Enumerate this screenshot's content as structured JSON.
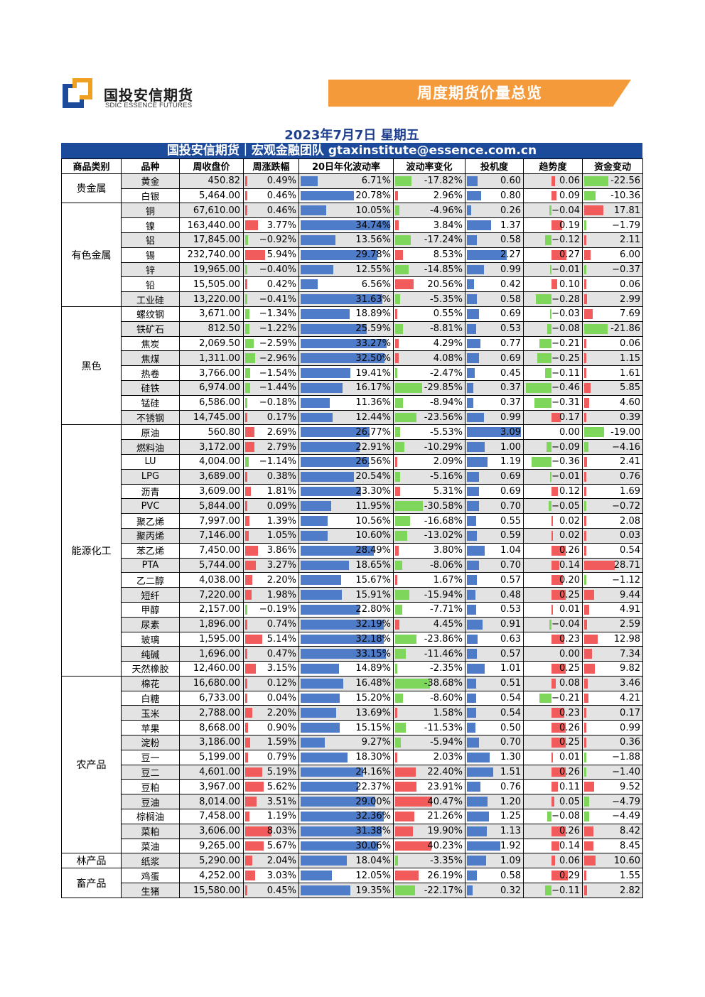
{
  "logo": {
    "cn": "国投安信期货",
    "en": "SDIC ESSENCE FUTURES"
  },
  "banner": {
    "title": "周度期货价量总览"
  },
  "date_line": "2023年7月7日 星期五",
  "team_line": "国投安信期货｜宏观金融团队 gtaxinstitute@essence.com.cn",
  "colors": {
    "positive": "#f25b5b",
    "negative": "#7ed65a",
    "volatility": "#4f7cc8",
    "header_bar": "#1d4b9c",
    "banner": "#f59a3a"
  },
  "columns": [
    "商品类别",
    "品种",
    "周收盘价",
    "周涨跌幅",
    "20日年化波动率",
    "波动率变化",
    "投机度",
    "趋势度",
    "资金变动"
  ],
  "groups": [
    {
      "category": "贵金属",
      "rows": [
        [
          "黄金",
          "450.82",
          "0.49%",
          "6.71%",
          "-17.82%",
          "0.60",
          "0.06",
          "-22.56"
        ],
        [
          "白银",
          "5,464.00",
          "0.46%",
          "20.78%",
          "2.96%",
          "0.80",
          "0.09",
          "-10.36"
        ]
      ]
    },
    {
      "category": "有色金属",
      "rows": [
        [
          "铜",
          "67,610.00",
          "0.46%",
          "10.05%",
          "-4.96%",
          "0.26",
          "−0.04",
          "17.81"
        ],
        [
          "镍",
          "163,440.00",
          "3.77%",
          "34.74%",
          "3.84%",
          "1.37",
          "0.19",
          "−1.79"
        ],
        [
          "铝",
          "17,845.00",
          "−0.92%",
          "13.56%",
          "-17.24%",
          "0.58",
          "−0.12",
          "2.11"
        ],
        [
          "锡",
          "232,740.00",
          "5.94%",
          "29.78%",
          "8.53%",
          "2.27",
          "0.27",
          "6.00"
        ],
        [
          "锌",
          "19,965.00",
          "−0.40%",
          "12.55%",
          "-14.85%",
          "0.99",
          "−0.01",
          "−0.37"
        ],
        [
          "铅",
          "15,505.00",
          "0.42%",
          "6.56%",
          "20.56%",
          "0.42",
          "0.10",
          "0.06"
        ],
        [
          "工业硅",
          "13,220.00",
          "−0.41%",
          "31.63%",
          "-5.35%",
          "0.58",
          "−0.28",
          "2.99"
        ]
      ]
    },
    {
      "category": "黑色",
      "rows": [
        [
          "螺纹钢",
          "3,671.00",
          "−1.34%",
          "18.89%",
          "0.55%",
          "0.69",
          "−0.03",
          "7.69"
        ],
        [
          "铁矿石",
          "812.50",
          "−1.22%",
          "25.59%",
          "-8.81%",
          "0.53",
          "−0.08",
          "-21.86"
        ],
        [
          "焦炭",
          "2,069.50",
          "−2.59%",
          "33.27%",
          "4.29%",
          "0.77",
          "−0.21",
          "0.06"
        ],
        [
          "焦煤",
          "1,311.00",
          "−2.96%",
          "32.50%",
          "4.08%",
          "0.69",
          "−0.25",
          "1.15"
        ],
        [
          "热卷",
          "3,766.00",
          "−1.54%",
          "19.41%",
          "-2.47%",
          "0.45",
          "−0.11",
          "1.61"
        ],
        [
          "硅铁",
          "6,974.00",
          "−1.44%",
          "16.17%",
          "-29.85%",
          "0.37",
          "−0.46",
          "5.85"
        ],
        [
          "锰硅",
          "6,586.00",
          "−0.18%",
          "11.36%",
          "-8.94%",
          "0.37",
          "−0.31",
          "4.60"
        ],
        [
          "不锈钢",
          "14,745.00",
          "0.17%",
          "12.44%",
          "-23.56%",
          "0.99",
          "0.17",
          "0.39"
        ]
      ]
    },
    {
      "category": "能源化工",
      "rows": [
        [
          "原油",
          "560.80",
          "2.69%",
          "26.77%",
          "-5.53%",
          "3.09",
          "0.00",
          "-19.00"
        ],
        [
          "燃料油",
          "3,172.00",
          "2.79%",
          "22.91%",
          "-10.29%",
          "1.00",
          "−0.09",
          "−4.16"
        ],
        [
          "LU",
          "4,004.00",
          "−1.14%",
          "26.56%",
          "2.09%",
          "1.19",
          "−0.36",
          "2.41"
        ],
        [
          "LPG",
          "3,689.00",
          "0.38%",
          "20.54%",
          "-5.16%",
          "0.69",
          "−0.01",
          "0.76"
        ],
        [
          "沥青",
          "3,609.00",
          "1.81%",
          "23.30%",
          "5.31%",
          "0.69",
          "0.12",
          "1.69"
        ],
        [
          "PVC",
          "5,844.00",
          "0.09%",
          "11.95%",
          "-30.58%",
          "0.70",
          "−0.05",
          "−0.72"
        ],
        [
          "聚乙烯",
          "7,997.00",
          "1.39%",
          "10.56%",
          "-16.68%",
          "0.55",
          "0.02",
          "2.08"
        ],
        [
          "聚丙烯",
          "7,146.00",
          "1.05%",
          "10.60%",
          "-13.02%",
          "0.59",
          "0.02",
          "0.03"
        ],
        [
          "苯乙烯",
          "7,450.00",
          "3.86%",
          "28.49%",
          "3.80%",
          "1.04",
          "0.26",
          "0.54"
        ],
        [
          "PTA",
          "5,744.00",
          "3.27%",
          "18.65%",
          "-8.06%",
          "0.70",
          "0.14",
          "28.71"
        ],
        [
          "乙二醇",
          "4,038.00",
          "2.20%",
          "15.67%",
          "1.67%",
          "0.57",
          "0.20",
          "−1.12"
        ],
        [
          "短纤",
          "7,220.00",
          "1.98%",
          "15.91%",
          "-15.94%",
          "0.48",
          "0.25",
          "9.44"
        ],
        [
          "甲醇",
          "2,157.00",
          "−0.19%",
          "22.80%",
          "-7.71%",
          "0.53",
          "0.01",
          "4.91"
        ],
        [
          "尿素",
          "1,896.00",
          "0.74%",
          "32.19%",
          "4.45%",
          "0.91",
          "−0.04",
          "2.59"
        ],
        [
          "玻璃",
          "1,595.00",
          "5.14%",
          "32.18%",
          "-23.86%",
          "0.63",
          "0.23",
          "12.98"
        ],
        [
          "纯碱",
          "1,696.00",
          "0.47%",
          "33.15%",
          "-11.46%",
          "0.57",
          "0.00",
          "7.34"
        ],
        [
          "天然橡胶",
          "12,460.00",
          "3.15%",
          "14.89%",
          "-2.35%",
          "1.01",
          "0.25",
          "9.82"
        ]
      ]
    },
    {
      "category": "农产品",
      "rows": [
        [
          "棉花",
          "16,680.00",
          "0.12%",
          "16.48%",
          "-38.68%",
          "0.51",
          "0.08",
          "3.46"
        ],
        [
          "白糖",
          "6,733.00",
          "0.04%",
          "15.20%",
          "-8.60%",
          "0.54",
          "−0.21",
          "4.21"
        ],
        [
          "玉米",
          "2,788.00",
          "2.20%",
          "13.69%",
          "1.58%",
          "0.54",
          "0.23",
          "0.17"
        ],
        [
          "苹果",
          "8,668.00",
          "0.90%",
          "15.15%",
          "-11.53%",
          "0.50",
          "0.26",
          "0.99"
        ],
        [
          "淀粉",
          "3,186.00",
          "1.59%",
          "9.27%",
          "-5.94%",
          "0.70",
          "0.25",
          "0.36"
        ],
        [
          "豆一",
          "5,199.00",
          "0.79%",
          "18.30%",
          "2.03%",
          "1.30",
          "0.01",
          "−1.88"
        ],
        [
          "豆二",
          "4,601.00",
          "5.19%",
          "24.16%",
          "22.40%",
          "1.51",
          "0.26",
          "−1.40"
        ],
        [
          "豆粕",
          "3,967.00",
          "5.62%",
          "22.37%",
          "23.91%",
          "0.76",
          "0.11",
          "9.52"
        ],
        [
          "豆油",
          "8,014.00",
          "3.51%",
          "29.00%",
          "40.47%",
          "1.20",
          "0.05",
          "−4.79"
        ],
        [
          "棕榈油",
          "7,458.00",
          "1.19%",
          "32.36%",
          "21.26%",
          "1.25",
          "−0.08",
          "−4.49"
        ],
        [
          "菜粕",
          "3,606.00",
          "8.03%",
          "31.38%",
          "19.90%",
          "1.13",
          "0.26",
          "8.42"
        ],
        [
          "菜油",
          "9,265.00",
          "5.67%",
          "30.06%",
          "40.23%",
          "1.92",
          "0.14",
          "8.45"
        ]
      ]
    },
    {
      "category": "林产品",
      "rows": [
        [
          "纸浆",
          "5,290.00",
          "2.04%",
          "18.04%",
          "-3.35%",
          "1.09",
          "0.06",
          "10.60"
        ]
      ]
    },
    {
      "category": "畜产品",
      "rows": [
        [
          "鸡蛋",
          "4,252.00",
          "3.03%",
          "12.05%",
          "26.19%",
          "0.58",
          "0.29",
          "1.55"
        ],
        [
          "生猪",
          "15,580.00",
          "0.45%",
          "19.35%",
          "-22.17%",
          "0.32",
          "−0.11",
          "2.82"
        ]
      ]
    }
  ]
}
